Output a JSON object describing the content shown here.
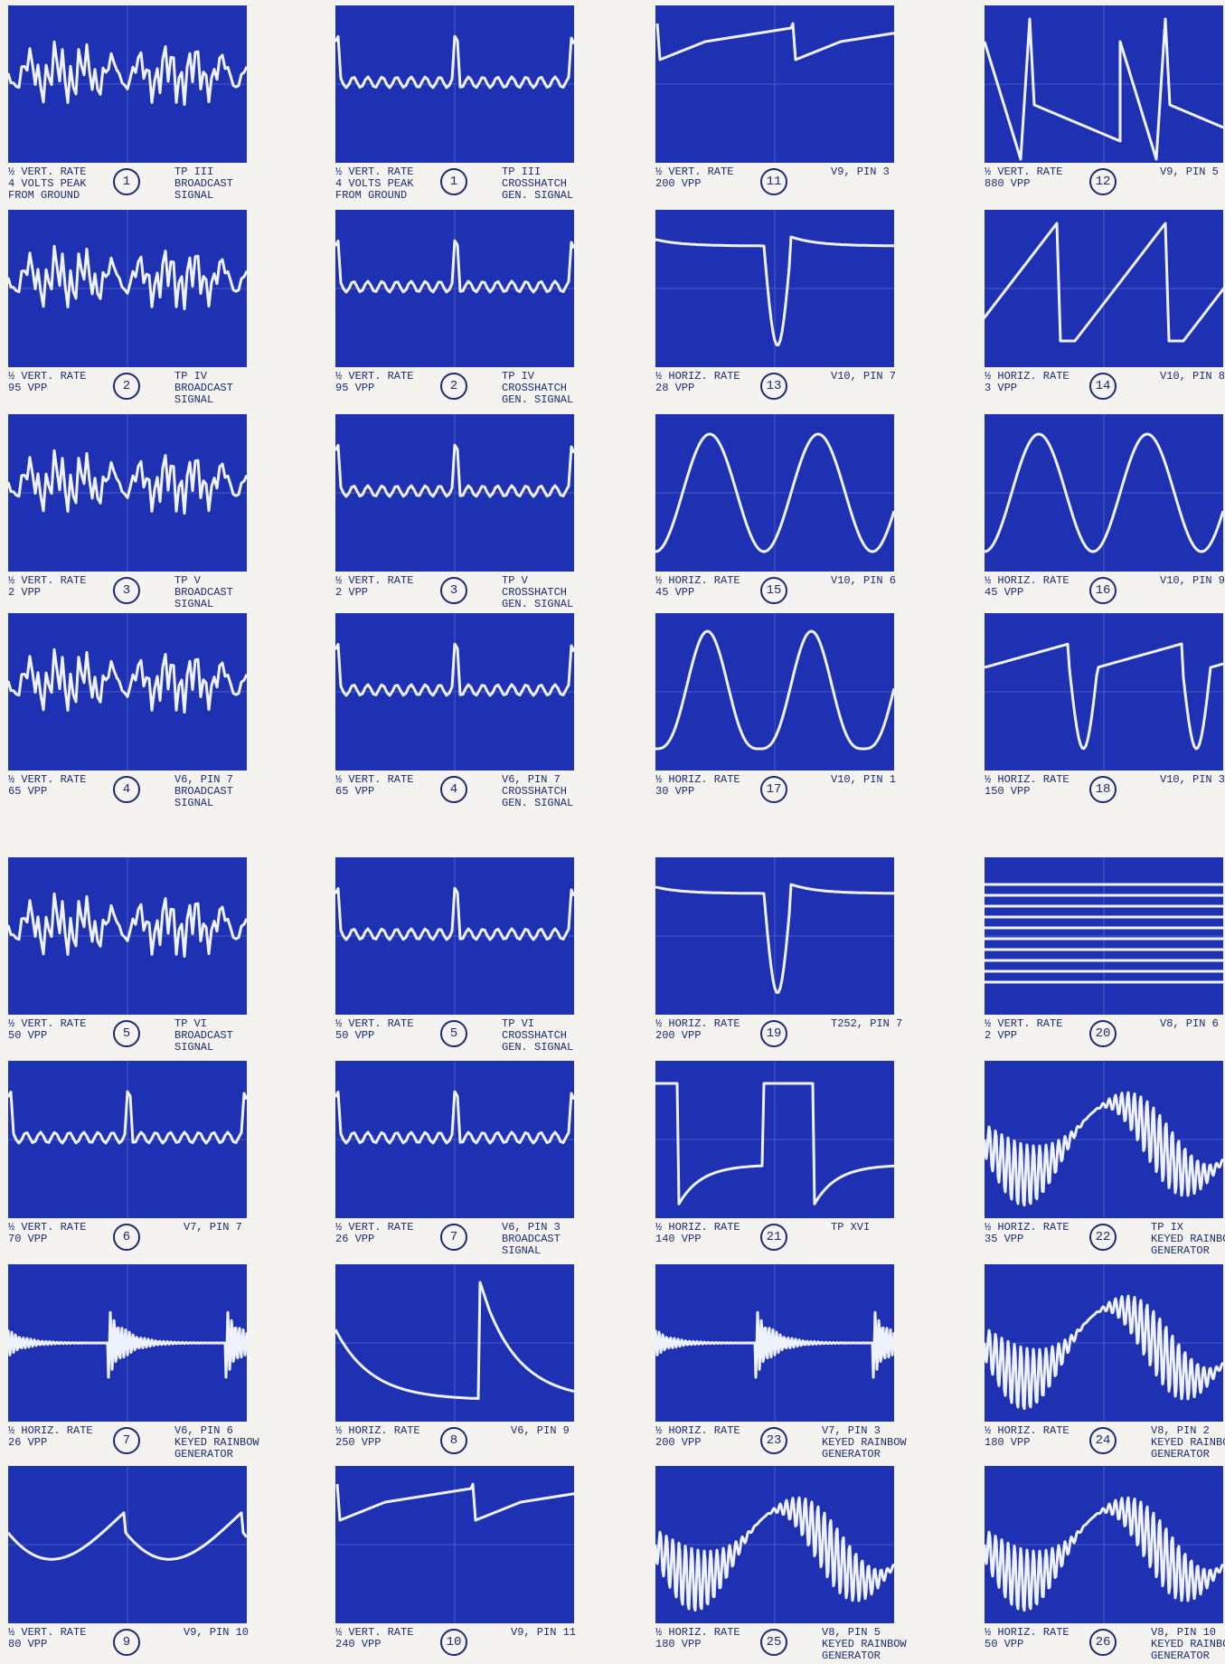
{
  "panels": [
    {
      "left": [
        "½ VERT. RATE",
        "4 VOLTS PEAK",
        "FROM GROUND"
      ],
      "number": "1",
      "right": [
        "TP III",
        "BROADCAST",
        "SIGNAL"
      ]
    },
    {
      "left": [
        "½ VERT. RATE",
        "4 VOLTS PEAK",
        "FROM GROUND"
      ],
      "number": "1",
      "right": [
        "TP III",
        "CROSSHATCH",
        "GEN. SIGNAL"
      ]
    },
    {
      "left": [
        "½ VERT. RATE",
        "200 VPP"
      ],
      "number": "11",
      "right": [
        "V9, PIN 3"
      ]
    },
    {
      "left": [
        "½ VERT. RATE",
        "880 VPP"
      ],
      "number": "12",
      "right": [
        "V9, PIN 5"
      ]
    },
    {
      "left": [
        "½ VERT. RATE",
        "95 VPP"
      ],
      "number": "2",
      "right": [
        "TP IV",
        "BROADCAST",
        "SIGNAL"
      ]
    },
    {
      "left": [
        "½ VERT. RATE",
        "95 VPP"
      ],
      "number": "2",
      "right": [
        "TP IV",
        "CROSSHATCH",
        "GEN. SIGNAL"
      ]
    },
    {
      "left": [
        "½ HORIZ. RATE",
        "28 VPP"
      ],
      "number": "13",
      "right": [
        "V10, PIN 7"
      ]
    },
    {
      "left": [
        "½ HORIZ. RATE",
        "3 VPP"
      ],
      "number": "14",
      "right": [
        "V10, PIN 8"
      ]
    },
    {
      "left": [
        "½ VERT. RATE",
        "2 VPP"
      ],
      "number": "3",
      "right": [
        "TP V",
        "BROADCAST",
        "SIGNAL"
      ]
    },
    {
      "left": [
        "½ VERT. RATE",
        "2 VPP"
      ],
      "number": "3",
      "right": [
        "TP V",
        "CROSSHATCH",
        "GEN. SIGNAL"
      ]
    },
    {
      "left": [
        "½ HORIZ. RATE",
        "45 VPP"
      ],
      "number": "15",
      "right": [
        "V10, PIN 6"
      ]
    },
    {
      "left": [
        "½ HORIZ. RATE",
        "45 VPP"
      ],
      "number": "16",
      "right": [
        "V10, PIN 9"
      ]
    },
    {
      "left": [
        "½ VERT. RATE",
        "65 VPP"
      ],
      "number": "4",
      "right": [
        "V6, PIN 7",
        "BROADCAST",
        "SIGNAL"
      ]
    },
    {
      "left": [
        "½ VERT. RATE",
        "65 VPP"
      ],
      "number": "4",
      "right": [
        "V6, PIN 7",
        "CROSSHATCH",
        "GEN. SIGNAL"
      ]
    },
    {
      "left": [
        "½ HORIZ. RATE",
        "30 VPP"
      ],
      "number": "17",
      "right": [
        "V10, PIN 1"
      ]
    },
    {
      "left": [
        "½ HORIZ. RATE",
        "150 VPP"
      ],
      "number": "18",
      "right": [
        "V10, PIN 3"
      ]
    },
    {
      "left": [
        "½ VERT. RATE",
        "50 VPP"
      ],
      "number": "5",
      "right": [
        "TP VI",
        "BROADCAST",
        "SIGNAL"
      ]
    },
    {
      "left": [
        "½ VERT. RATE",
        "50 VPP"
      ],
      "number": "5",
      "right": [
        "TP VI",
        "CROSSHATCH",
        "GEN. SIGNAL"
      ]
    },
    {
      "left": [
        "½ HORIZ. RATE",
        "200 VPP"
      ],
      "number": "19",
      "right": [
        "T252, PIN 7"
      ]
    },
    {
      "left": [
        "½ VERT. RATE",
        "2 VPP"
      ],
      "number": "20",
      "right": [
        "V8, PIN 6"
      ]
    },
    {
      "left": [
        "½ VERT. RATE",
        "70 VPP"
      ],
      "number": "6",
      "right": [
        "V7, PIN 7"
      ]
    },
    {
      "left": [
        "½ VERT. RATE",
        "26 VPP"
      ],
      "number": "7",
      "right": [
        "V6, PIN 3",
        "BROADCAST",
        "SIGNAL"
      ]
    },
    {
      "left": [
        "½ HORIZ. RATE",
        "140 VPP"
      ],
      "number": "21",
      "right": [
        "TP XVI"
      ]
    },
    {
      "left": [
        "½ HORIZ. RATE",
        "35 VPP"
      ],
      "number": "22",
      "right": [
        "TP IX",
        "KEYED RAINBOW",
        "GENERATOR"
      ]
    },
    {
      "left": [
        "½ HORIZ. RATE",
        "26 VPP"
      ],
      "number": "7",
      "right": [
        "V6, PIN 6",
        "KEYED RAINBOW",
        "GENERATOR"
      ]
    },
    {
      "left": [
        "½ HORIZ. RATE",
        "250 VPP"
      ],
      "number": "8",
      "right": [
        "V6, PIN 9"
      ]
    },
    {
      "left": [
        "½ HORIZ. RATE",
        "200 VPP"
      ],
      "number": "23",
      "right": [
        "V7, PIN 3",
        "KEYED RAINBOW",
        "GENERATOR"
      ]
    },
    {
      "left": [
        "½ HORIZ. RATE",
        "180 VPP"
      ],
      "number": "24",
      "right": [
        "V8, PIN 2",
        "KEYED RAINBOW",
        "GENERATOR"
      ]
    },
    {
      "left": [
        "½ VERT. RATE",
        "80 VPP"
      ],
      "number": "9",
      "right": [
        "V9, PIN 10"
      ]
    },
    {
      "left": [
        "½ VERT. RATE",
        "240 VPP"
      ],
      "number": "10",
      "right": [
        "V9, PIN 11"
      ]
    },
    {
      "left": [
        "½ HORIZ. RATE",
        "180 VPP"
      ],
      "number": "25",
      "right": [
        "V8, PIN 5",
        "KEYED RAINBOW",
        "GENERATOR"
      ]
    },
    {
      "left": [
        "½ HORIZ. RATE",
        "50 VPP"
      ],
      "number": "26",
      "right": [
        "V8, PIN 10",
        "KEYED RAINBOW",
        "GENERATOR"
      ]
    }
  ]
}
